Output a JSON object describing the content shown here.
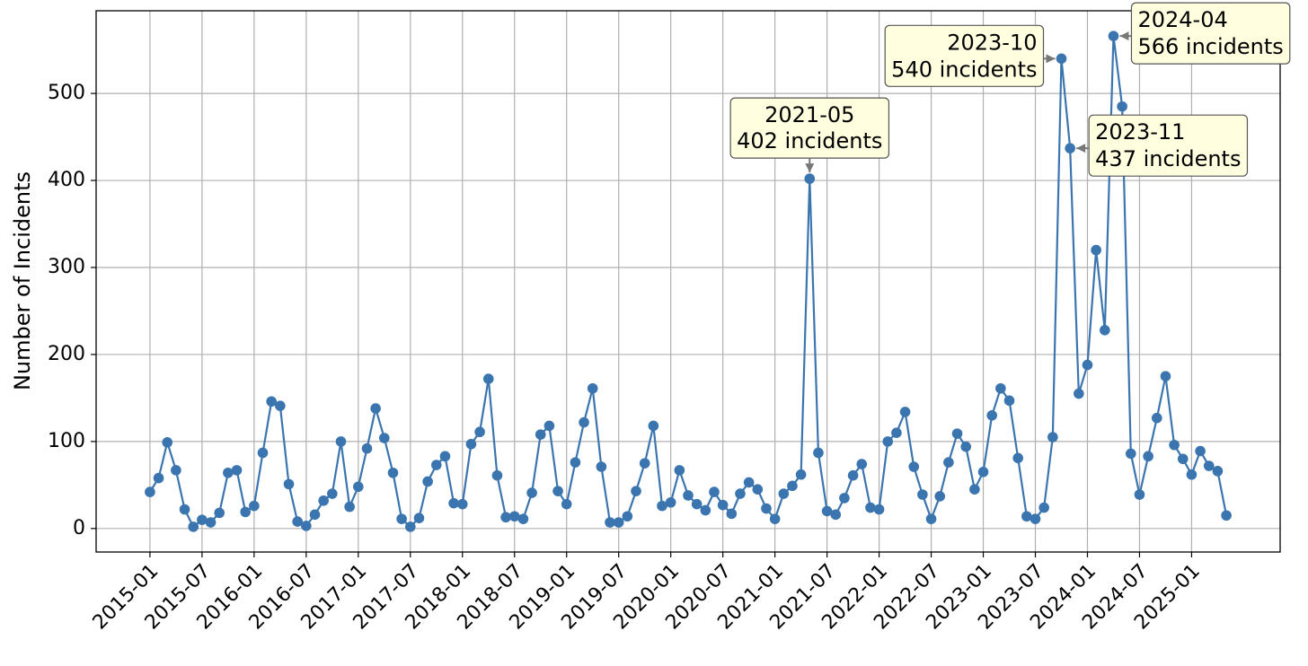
{
  "chart_data": {
    "type": "line",
    "y_label": "Number of Incidents",
    "color": "#3b75af",
    "grid": true,
    "x": [
      "2015-01",
      "2015-02",
      "2015-03",
      "2015-04",
      "2015-05",
      "2015-06",
      "2015-07",
      "2015-08",
      "2015-09",
      "2015-10",
      "2015-11",
      "2015-12",
      "2016-01",
      "2016-02",
      "2016-03",
      "2016-04",
      "2016-05",
      "2016-06",
      "2016-07",
      "2016-08",
      "2016-09",
      "2016-10",
      "2016-11",
      "2016-12",
      "2017-01",
      "2017-02",
      "2017-03",
      "2017-04",
      "2017-05",
      "2017-06",
      "2017-07",
      "2017-08",
      "2017-09",
      "2017-10",
      "2017-11",
      "2017-12",
      "2018-01",
      "2018-02",
      "2018-03",
      "2018-04",
      "2018-05",
      "2018-06",
      "2018-07",
      "2018-08",
      "2018-09",
      "2018-10",
      "2018-11",
      "2018-12",
      "2019-01",
      "2019-02",
      "2019-03",
      "2019-04",
      "2019-05",
      "2019-06",
      "2019-07",
      "2019-08",
      "2019-09",
      "2019-10",
      "2019-11",
      "2019-12",
      "2020-01",
      "2020-02",
      "2020-03",
      "2020-04",
      "2020-05",
      "2020-06",
      "2020-07",
      "2020-08",
      "2020-09",
      "2020-10",
      "2020-11",
      "2020-12",
      "2021-01",
      "2021-02",
      "2021-03",
      "2021-04",
      "2021-05",
      "2021-06",
      "2021-07",
      "2021-08",
      "2021-09",
      "2021-10",
      "2021-11",
      "2021-12",
      "2022-01",
      "2022-02",
      "2022-03",
      "2022-04",
      "2022-05",
      "2022-06",
      "2022-07",
      "2022-08",
      "2022-09",
      "2022-10",
      "2022-11",
      "2022-12",
      "2023-01",
      "2023-02",
      "2023-03",
      "2023-04",
      "2023-05",
      "2023-06",
      "2023-07",
      "2023-08",
      "2023-09",
      "2023-10",
      "2023-11",
      "2023-12",
      "2024-01",
      "2024-02",
      "2024-03",
      "2024-04",
      "2024-05",
      "2024-06",
      "2024-07",
      "2024-08",
      "2024-09",
      "2024-10",
      "2024-11",
      "2024-12",
      "2025-01",
      "2025-02",
      "2025-03",
      "2025-04",
      "2025-05"
    ],
    "values": [
      42,
      58,
      99,
      67,
      22,
      2,
      10,
      7,
      18,
      64,
      67,
      19,
      26,
      87,
      146,
      141,
      51,
      8,
      3,
      16,
      32,
      40,
      100,
      25,
      48,
      92,
      138,
      104,
      64,
      11,
      2,
      12,
      54,
      73,
      83,
      29,
      28,
      97,
      111,
      172,
      61,
      13,
      14,
      11,
      41,
      108,
      118,
      43,
      28,
      76,
      122,
      161,
      71,
      7,
      7,
      14,
      43,
      75,
      118,
      26,
      30,
      67,
      38,
      28,
      21,
      42,
      27,
      17,
      40,
      53,
      45,
      23,
      11,
      40,
      49,
      62,
      402,
      87,
      20,
      16,
      35,
      61,
      74,
      24,
      22,
      100,
      110,
      134,
      71,
      39,
      11,
      37,
      76,
      109,
      94,
      45,
      65,
      130,
      161,
      147,
      81,
      14,
      11,
      24,
      105,
      540,
      437,
      155,
      188,
      320,
      228,
      566,
      485,
      86,
      39,
      83,
      127,
      175,
      96,
      80,
      62,
      89,
      72,
      66,
      15
    ],
    "xticks": [
      "2015-01",
      "2015-07",
      "2016-01",
      "2016-07",
      "2017-01",
      "2017-07",
      "2018-01",
      "2018-07",
      "2019-01",
      "2019-07",
      "2020-01",
      "2020-07",
      "2021-01",
      "2021-07",
      "2022-01",
      "2022-07",
      "2023-01",
      "2023-07",
      "2024-01",
      "2024-07",
      "2025-01"
    ],
    "ylim": [
      -27,
      595
    ],
    "yticks": [
      0,
      100,
      200,
      300,
      400,
      500
    ],
    "annotations": [
      {
        "text": [
          "2021-05",
          "402 incidents"
        ]
      },
      {
        "text": [
          "2023-10",
          "540 incidents"
        ]
      },
      {
        "text": [
          "2023-11",
          "437 incidents"
        ]
      },
      {
        "text": [
          "2024-04",
          "566 incidents"
        ]
      }
    ]
  }
}
